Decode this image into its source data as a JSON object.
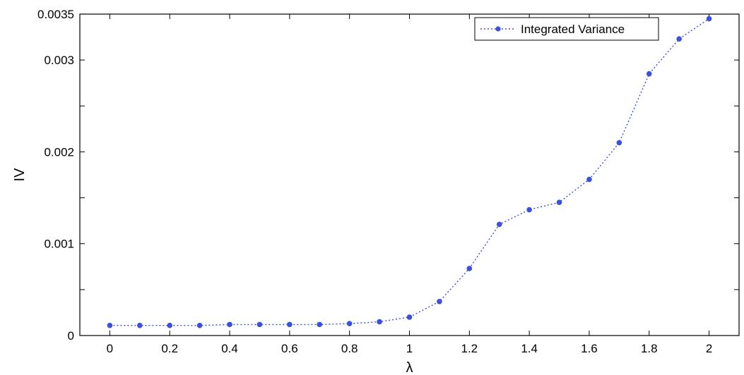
{
  "chart_data": {
    "type": "line",
    "title": "",
    "xlabel": "λ",
    "ylabel": "IV",
    "xlim": [
      -0.1,
      2.1
    ],
    "ylim": [
      0,
      0.0035
    ],
    "x_ticks": [
      0,
      0.2,
      0.4,
      0.6,
      0.8,
      1,
      1.2,
      1.4,
      1.6,
      1.8,
      2
    ],
    "x_tick_labels": [
      "0",
      "0.2",
      "0.4",
      "0.6",
      "0.8",
      "1",
      "1.2",
      "1.4",
      "1.6",
      "1.8",
      "2"
    ],
    "y_ticks": [
      0,
      0.0005,
      0.001,
      0.0015,
      0.002,
      0.0025,
      0.003,
      0.0035
    ],
    "y_tick_labels": [
      "0",
      "",
      "0.001",
      "",
      "0.002",
      "",
      "0.003",
      "0.0035"
    ],
    "grid": false,
    "legend_position": "top-right",
    "series": [
      {
        "name": "Integrated Variance",
        "color": "#3b4fe0",
        "line_style": "dotted",
        "marker": "dot",
        "x": [
          0,
          0.1,
          0.2,
          0.3,
          0.4,
          0.5,
          0.6,
          0.7,
          0.8,
          0.9,
          1.0,
          1.1,
          1.2,
          1.3,
          1.4,
          1.5,
          1.6,
          1.7,
          1.8,
          1.9,
          2.0
        ],
        "y": [
          0.00011,
          0.00011,
          0.00011,
          0.00011,
          0.00012,
          0.00012,
          0.00012,
          0.00012,
          0.00013,
          0.00015,
          0.0002,
          0.00037,
          0.00073,
          0.00121,
          0.00137,
          0.00145,
          0.0017,
          0.0021,
          0.00285,
          0.00323,
          0.00345
        ]
      }
    ]
  }
}
